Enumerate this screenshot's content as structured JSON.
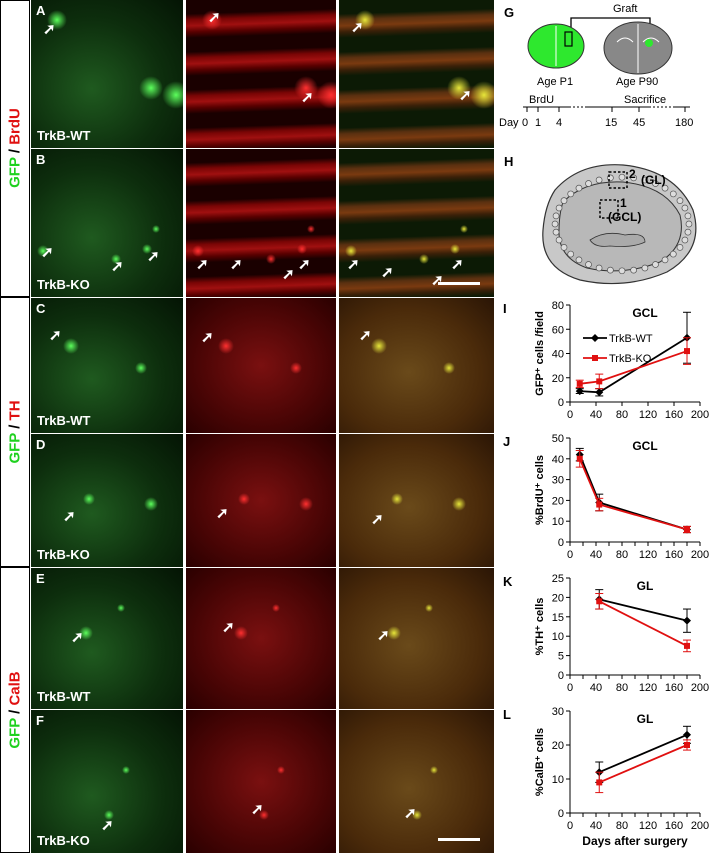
{
  "side_labels": [
    {
      "a": "GFP",
      "sep": " / ",
      "b": "BrdU",
      "color_b": "#e01010"
    },
    {
      "a": "GFP",
      "sep": " / ",
      "b": "TH",
      "color_b": "#e01010"
    },
    {
      "a": "GFP",
      "sep": " / ",
      "b": "CalB",
      "color_b": "#e01010"
    }
  ],
  "panels": [
    {
      "letter": "A",
      "genotype": "TrkB-WT"
    },
    {
      "letter": "B",
      "genotype": "TrkB-KO"
    },
    {
      "letter": "C",
      "genotype": "TrkB-WT"
    },
    {
      "letter": "D",
      "genotype": "TrkB-KO"
    },
    {
      "letter": "E",
      "genotype": "TrkB-WT"
    },
    {
      "letter": "F",
      "genotype": "TrkB-KO"
    }
  ],
  "schematic_g": {
    "letter": "G",
    "graft": "Graft",
    "age1": "Age P1",
    "age2": "Age P90",
    "brdu": "BrdU",
    "sacrifice": "Sacrifice",
    "day": "Day",
    "ticks": [
      "0",
      "1",
      "4",
      "15",
      "45",
      "180"
    ]
  },
  "schematic_h": {
    "letter": "H",
    "region2": "2 (GL)",
    "region1": "1 (GCL)",
    "num2": "2",
    "num1": "1",
    "gl": "(GL)",
    "gcl": "(GCL)"
  },
  "chart_data": [
    {
      "letter": "I",
      "type": "line",
      "title": "GCL",
      "ylabel": "GFP⁺ cells /field",
      "ylim": [
        0,
        80
      ],
      "yticks": [
        0,
        20,
        40,
        60,
        80
      ],
      "xlim": [
        0,
        200
      ],
      "xticks": [
        0,
        40,
        80,
        120,
        160,
        200
      ],
      "series": [
        {
          "name": "TrkB-WT",
          "color": "#000000",
          "x": [
            15,
            45,
            180
          ],
          "y": [
            9,
            8,
            53
          ],
          "err": [
            2,
            3,
            21
          ]
        },
        {
          "name": "TrkB-KO",
          "color": "#e01010",
          "x": [
            15,
            45,
            180
          ],
          "y": [
            15,
            17,
            42
          ],
          "err": [
            3,
            6,
            11
          ]
        }
      ]
    },
    {
      "letter": "J",
      "type": "line",
      "title": "GCL",
      "ylabel": "%BrdU⁺ cells",
      "ylim": [
        0,
        50
      ],
      "yticks": [
        0,
        10,
        20,
        30,
        40,
        50
      ],
      "xlim": [
        0,
        200
      ],
      "xticks": [
        0,
        20,
        40,
        60,
        80,
        100,
        120,
        140,
        160,
        180,
        200
      ],
      "series": [
        {
          "color": "#000000",
          "x": [
            15,
            45,
            180
          ],
          "y": [
            42,
            19,
            6
          ],
          "err": [
            3,
            4,
            1.5
          ]
        },
        {
          "color": "#e01010",
          "x": [
            15,
            45,
            180
          ],
          "y": [
            40,
            18,
            6
          ],
          "err": [
            4,
            3,
            1.5
          ]
        }
      ]
    },
    {
      "letter": "K",
      "type": "line",
      "title": "GL",
      "ylabel": "%TH⁺ cells",
      "ylim": [
        0,
        25
      ],
      "yticks": [
        0,
        5,
        10,
        15,
        20,
        25
      ],
      "xlim": [
        0,
        200
      ],
      "xticks": [
        0,
        20,
        40,
        60,
        80,
        100,
        120,
        140,
        160,
        180,
        200
      ],
      "series": [
        {
          "color": "#000000",
          "x": [
            45,
            180
          ],
          "y": [
            19.5,
            14
          ],
          "err": [
            2.5,
            3
          ]
        },
        {
          "color": "#e01010",
          "x": [
            45,
            180
          ],
          "y": [
            19,
            7.5
          ],
          "err": [
            2,
            1.5
          ]
        }
      ]
    },
    {
      "letter": "L",
      "type": "line",
      "title": "GL",
      "ylabel": "%CalB⁺ cells",
      "xlabel": "Days after surgery",
      "ylim": [
        0,
        30
      ],
      "yticks": [
        0,
        10,
        20,
        30
      ],
      "xlim": [
        0,
        200
      ],
      "xticks": [
        0,
        20,
        40,
        60,
        80,
        100,
        120,
        140,
        160,
        180,
        200
      ],
      "series": [
        {
          "color": "#000000",
          "x": [
            45,
            180
          ],
          "y": [
            12,
            23
          ],
          "err": [
            3,
            2.5
          ]
        },
        {
          "color": "#e01010",
          "x": [
            45,
            180
          ],
          "y": [
            9,
            20
          ],
          "err": [
            3,
            1.5
          ]
        }
      ]
    }
  ]
}
